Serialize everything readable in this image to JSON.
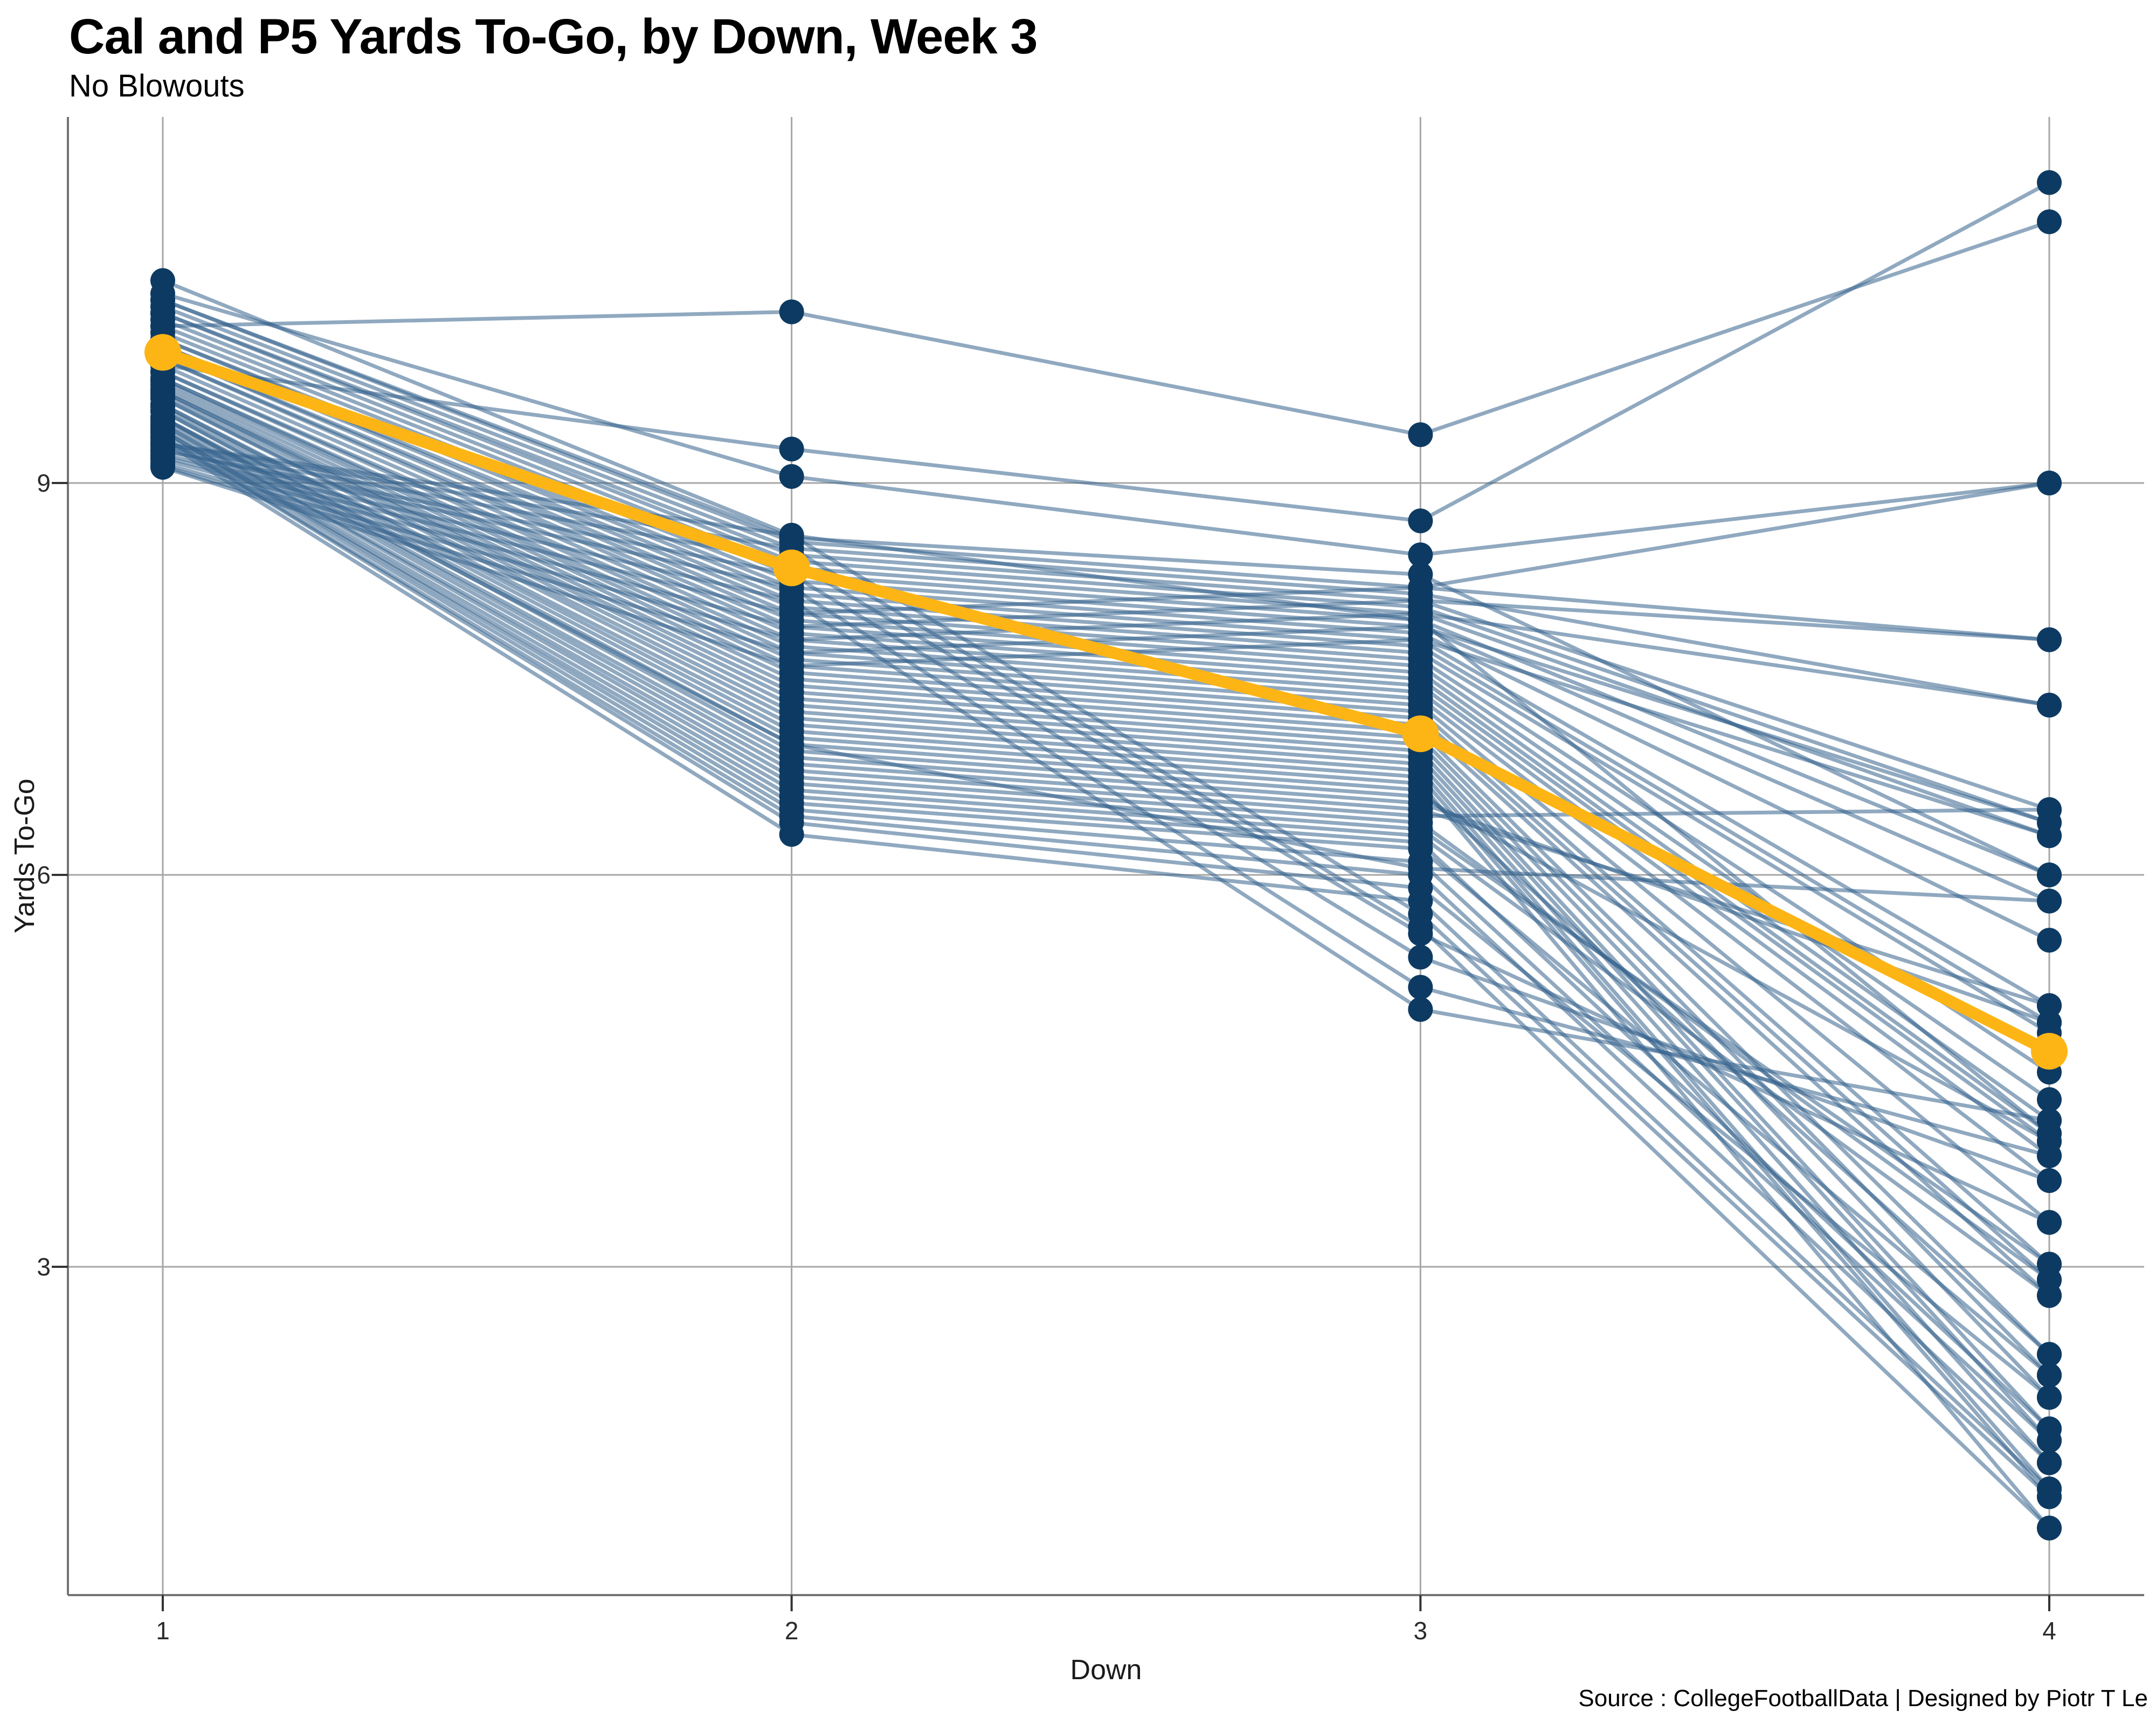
{
  "title": "Cal and P5 Yards To-Go, by Down, Week 3",
  "subtitle": "No Blowouts",
  "source_credit": "Source : CollegeFootballData | Designed by Piotr T Le",
  "x_axis": {
    "label": "Down",
    "tick_labels": [
      "1",
      "2",
      "3",
      "4"
    ]
  },
  "y_axis": {
    "label": "Yards To-Go",
    "tick_labels": [
      "3",
      "6",
      "9"
    ],
    "tick_values": [
      3,
      6,
      9
    ]
  },
  "colors": {
    "highlight": "#FDB515",
    "point": "#0D3A62",
    "line": "#35628C",
    "gridline": "#A6A6A6",
    "axis_line": "#737373",
    "tick_mark": "#333333"
  },
  "chart_data": {
    "type": "line",
    "x": [
      1,
      2,
      3,
      4
    ],
    "xlabel": "Down",
    "ylabel": "Yards To-Go",
    "ylim": [
      0.5,
      11.8
    ],
    "yticks": [
      3,
      6,
      9
    ],
    "grid": true,
    "legend": "none",
    "highlight_series": {
      "name": "Cal",
      "values": [
        10.0,
        8.35,
        7.08,
        4.65
      ]
    },
    "series_name": "P5 teams (no blowouts)",
    "lines": [
      [
        10.55,
        8.6,
        7.95,
        4.02
      ],
      [
        10.2,
        10.31,
        9.37,
        11.0
      ],
      [
        9.9,
        9.26,
        8.71,
        11.3
      ],
      [
        10.45,
        9.05,
        8.45,
        9.0
      ],
      [
        10.4,
        8.55,
        8.2,
        7.8
      ],
      [
        10.35,
        8.5,
        8.15,
        7.3
      ],
      [
        10.3,
        8.45,
        8.1,
        6.5
      ],
      [
        10.3,
        8.4,
        8.05,
        6.4
      ],
      [
        10.25,
        8.35,
        8.0,
        6.3
      ],
      [
        10.2,
        8.3,
        7.95,
        6.0
      ],
      [
        10.15,
        8.25,
        7.9,
        5.8
      ],
      [
        10.1,
        8.2,
        7.85,
        5.5
      ],
      [
        10.1,
        8.15,
        7.8,
        5.0
      ],
      [
        10.05,
        8.1,
        7.75,
        4.87
      ],
      [
        10.05,
        8.05,
        7.7,
        4.79
      ],
      [
        10.0,
        8.0,
        7.65,
        4.49
      ],
      [
        10.0,
        7.95,
        7.6,
        4.28
      ],
      [
        9.95,
        7.9,
        7.55,
        4.12
      ],
      [
        9.95,
        7.85,
        7.5,
        4.02
      ],
      [
        9.9,
        7.8,
        7.45,
        3.96
      ],
      [
        9.85,
        7.75,
        7.4,
        3.85
      ],
      [
        9.85,
        7.7,
        7.35,
        3.66
      ],
      [
        9.8,
        7.65,
        7.3,
        3.34
      ],
      [
        9.8,
        7.6,
        7.25,
        3.02
      ],
      [
        9.78,
        7.55,
        7.2,
        2.9
      ],
      [
        9.75,
        7.5,
        7.15,
        2.78
      ],
      [
        9.72,
        7.45,
        7.1,
        2.33
      ],
      [
        9.7,
        7.4,
        7.05,
        2.17
      ],
      [
        9.7,
        7.35,
        7.0,
        2.0
      ],
      [
        9.68,
        7.3,
        6.95,
        1.76
      ],
      [
        9.65,
        7.25,
        6.9,
        1.67
      ],
      [
        9.65,
        7.2,
        6.85,
        1.5
      ],
      [
        9.6,
        7.15,
        6.8,
        1.3
      ],
      [
        9.6,
        7.1,
        6.75,
        1.24
      ],
      [
        9.58,
        7.05,
        6.7,
        1.0
      ],
      [
        9.55,
        7.0,
        6.65,
        2.33
      ],
      [
        9.55,
        6.95,
        6.6,
        3.96
      ],
      [
        9.5,
        6.9,
        6.55,
        4.87
      ],
      [
        9.5,
        6.85,
        6.5,
        5.0
      ],
      [
        9.48,
        6.8,
        6.45,
        6.5
      ],
      [
        9.45,
        6.75,
        6.4,
        2.9
      ],
      [
        9.45,
        6.7,
        6.35,
        3.02
      ],
      [
        9.42,
        6.65,
        6.3,
        2.78
      ],
      [
        9.4,
        6.6,
        6.25,
        1.76
      ],
      [
        9.4,
        6.55,
        6.2,
        2.17
      ],
      [
        9.38,
        6.5,
        6.1,
        1.67
      ],
      [
        9.35,
        6.45,
        6.0,
        1.5
      ],
      [
        9.35,
        6.4,
        5.9,
        2.0
      ],
      [
        9.32,
        6.31,
        5.8,
        1.3
      ],
      [
        9.3,
        8.6,
        5.7,
        1.24
      ],
      [
        9.3,
        8.5,
        5.6,
        1.0
      ],
      [
        9.28,
        8.4,
        5.55,
        3.34
      ],
      [
        9.25,
        8.3,
        5.37,
        3.66
      ],
      [
        9.25,
        8.2,
        5.14,
        3.85
      ],
      [
        9.22,
        8.1,
        4.97,
        4.12
      ],
      [
        9.2,
        8.0,
        8.2,
        9.0
      ],
      [
        9.18,
        7.9,
        8.1,
        7.8
      ],
      [
        9.15,
        7.8,
        8.0,
        7.3
      ],
      [
        9.13,
        7.7,
        7.9,
        6.4
      ],
      [
        9.12,
        7.6,
        7.8,
        6.3
      ],
      [
        10.4,
        8.58,
        8.3,
        6.0
      ],
      [
        9.5,
        7.0,
        6.05,
        5.8
      ]
    ]
  }
}
